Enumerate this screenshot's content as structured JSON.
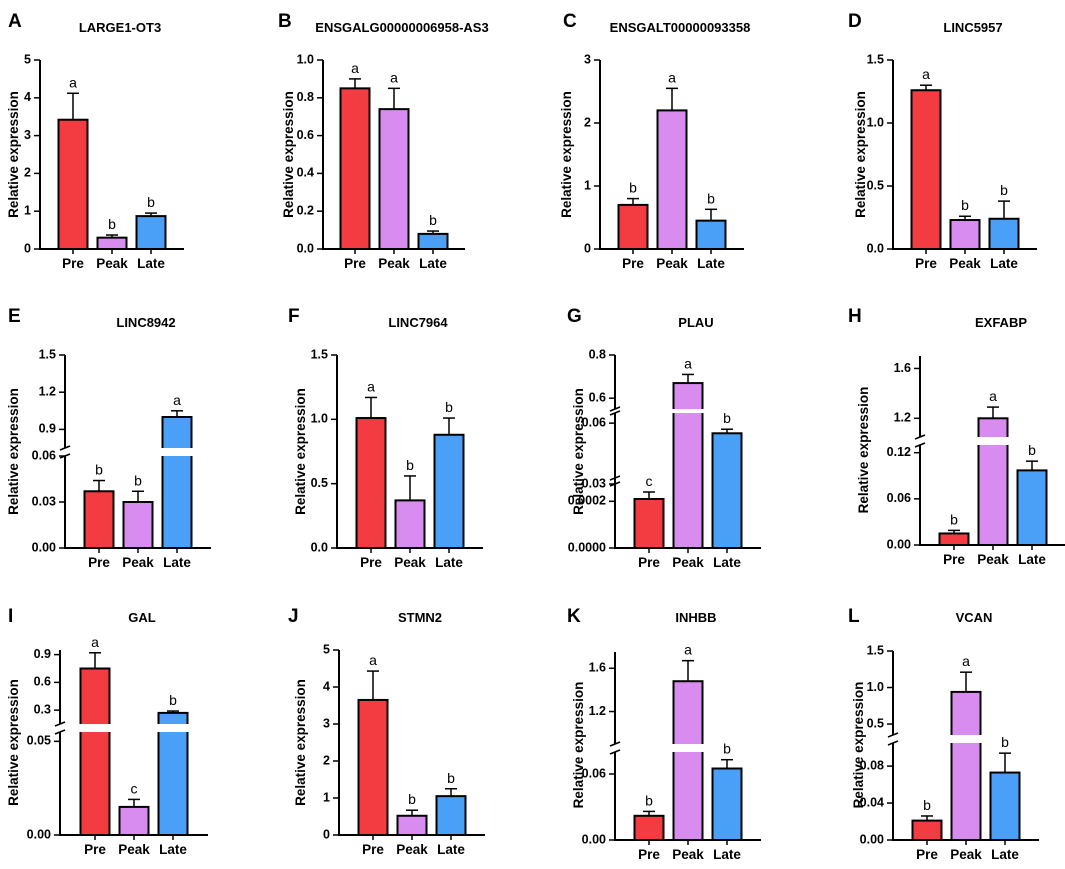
{
  "colors": {
    "pre": "#f23c41",
    "peak": "#d98cf0",
    "late": "#4aa0f6",
    "axis": "#000000"
  },
  "chart_data": [
    {
      "panel": "A",
      "title": "LARGE1-OT3",
      "type": "bar",
      "ylabel": "Relative expression",
      "categories": [
        "Pre",
        "Peak",
        "Late"
      ],
      "values": [
        3.42,
        0.3,
        0.87
      ],
      "errors": [
        0.7,
        0.07,
        0.08
      ],
      "letters": [
        "a",
        "b",
        "b"
      ],
      "ylim": [
        0,
        5
      ],
      "ticks": [
        {
          "v": 0,
          "t": "0"
        },
        {
          "v": 1,
          "t": "1"
        },
        {
          "v": 2,
          "t": "2"
        },
        {
          "v": 3,
          "t": "3"
        },
        {
          "v": 4,
          "t": "4"
        },
        {
          "v": 5,
          "t": "5"
        }
      ]
    },
    {
      "panel": "B",
      "title": "ENSGALG00000006958-AS3",
      "type": "bar",
      "ylabel": "Relative expression",
      "categories": [
        "Pre",
        "Peak",
        "Late"
      ],
      "values": [
        0.85,
        0.74,
        0.08
      ],
      "errors": [
        0.05,
        0.11,
        0.015
      ],
      "letters": [
        "a",
        "a",
        "b"
      ],
      "ylim": [
        0,
        1.0
      ],
      "ticks": [
        {
          "v": 0,
          "t": "0.0"
        },
        {
          "v": 0.2,
          "t": "0.2"
        },
        {
          "v": 0.4,
          "t": "0.4"
        },
        {
          "v": 0.6,
          "t": "0.6"
        },
        {
          "v": 0.8,
          "t": "0.8"
        },
        {
          "v": 1.0,
          "t": "1.0"
        }
      ]
    },
    {
      "panel": "C",
      "title": "ENSGALT00000093358",
      "type": "bar",
      "ylabel": "Relative expression",
      "categories": [
        "Pre",
        "Peak",
        "Late"
      ],
      "values": [
        0.7,
        2.2,
        0.45
      ],
      "errors": [
        0.1,
        0.35,
        0.18
      ],
      "letters": [
        "b",
        "a",
        "b"
      ],
      "ylim": [
        0,
        3
      ],
      "ticks": [
        {
          "v": 0,
          "t": "0"
        },
        {
          "v": 1,
          "t": "1"
        },
        {
          "v": 2,
          "t": "2"
        },
        {
          "v": 3,
          "t": "3"
        }
      ]
    },
    {
      "panel": "D",
      "title": "LINC5957",
      "type": "bar",
      "ylabel": "Relative expression",
      "categories": [
        "Pre",
        "Peak",
        "Late"
      ],
      "values": [
        1.26,
        0.23,
        0.24
      ],
      "errors": [
        0.04,
        0.03,
        0.14
      ],
      "letters": [
        "a",
        "b",
        "b"
      ],
      "ylim": [
        0,
        1.5
      ],
      "ticks": [
        {
          "v": 0,
          "t": "0.0"
        },
        {
          "v": 0.5,
          "t": "0.5"
        },
        {
          "v": 1.0,
          "t": "1.0"
        },
        {
          "v": 1.5,
          "t": "1.5"
        }
      ]
    },
    {
      "panel": "E",
      "title": "LINC8942",
      "type": "bar",
      "ylabel": "Relative expression",
      "categories": [
        "Pre",
        "Peak",
        "Late"
      ],
      "values": [
        0.037,
        0.03,
        1.0
      ],
      "errors": [
        0.007,
        0.007,
        0.05
      ],
      "letters": [
        "b",
        "b",
        "a"
      ],
      "axis_break": [
        0.06,
        0.75
      ],
      "ticks": [
        {
          "v": 0,
          "t": "0.00"
        },
        {
          "v": 0.03,
          "t": "0.03"
        },
        {
          "v": 0.06,
          "t": "0.06"
        },
        {
          "v": 0.9,
          "t": "0.9"
        },
        {
          "v": 1.2,
          "t": "1.2"
        },
        {
          "v": 1.5,
          "t": "1.5"
        }
      ]
    },
    {
      "panel": "F",
      "title": "LINC7964",
      "type": "bar",
      "ylabel": "Relative expression",
      "categories": [
        "Pre",
        "Peak",
        "Late"
      ],
      "values": [
        1.01,
        0.37,
        0.88
      ],
      "errors": [
        0.16,
        0.19,
        0.13
      ],
      "letters": [
        "a",
        "b",
        "b"
      ],
      "ylim": [
        0,
        1.5
      ],
      "ticks": [
        {
          "v": 0,
          "t": "0.0"
        },
        {
          "v": 0.5,
          "t": "0.5"
        },
        {
          "v": 1.0,
          "t": "1.0"
        },
        {
          "v": 1.5,
          "t": "1.5"
        }
      ]
    },
    {
      "panel": "G",
      "title": "PLAU",
      "type": "bar",
      "ylabel": "Relative expression",
      "categories": [
        "Pre",
        "Peak",
        "Late"
      ],
      "values": [
        0.00021,
        0.67,
        0.055
      ],
      "errors": [
        3e-05,
        0.04,
        0.002
      ],
      "letters": [
        "c",
        "a",
        "b"
      ],
      "axis_break": [
        0.0003,
        0.03,
        0.065,
        0.55
      ],
      "ticks": [
        {
          "v": 0,
          "t": "0.0000"
        },
        {
          "v": 0.0002,
          "t": "0.0002"
        },
        {
          "v": 0.03,
          "t": "0.03"
        },
        {
          "v": 0.06,
          "t": "0.06"
        },
        {
          "v": 0.6,
          "t": "0.6"
        },
        {
          "v": 0.8,
          "t": "0.8"
        }
      ]
    },
    {
      "panel": "H",
      "title": "EXFABP",
      "type": "bar",
      "ylabel": "Relative expression",
      "categories": [
        "Pre",
        "Peak",
        "Late"
      ],
      "values": [
        0.015,
        1.2,
        0.097
      ],
      "errors": [
        0.004,
        0.09,
        0.012
      ],
      "letters": [
        "b",
        "a",
        "b"
      ],
      "axis_break": [
        0.13,
        1.05
      ],
      "ticks": [
        {
          "v": 0,
          "t": "0.00"
        },
        {
          "v": 0.06,
          "t": "0.06"
        },
        {
          "v": 0.12,
          "t": "0.12"
        },
        {
          "v": 1.2,
          "t": "1.2"
        },
        {
          "v": 1.6,
          "t": "1.6"
        }
      ]
    },
    {
      "panel": "I",
      "title": "GAL",
      "type": "bar",
      "ylabel": "Relative expression",
      "categories": [
        "Pre",
        "Peak",
        "Late"
      ],
      "values": [
        0.75,
        0.015,
        0.27
      ],
      "errors": [
        0.17,
        0.004,
        0.02
      ],
      "letters": [
        "a",
        "c",
        "b"
      ],
      "axis_break": [
        0.055,
        0.15
      ],
      "ticks": [
        {
          "v": 0,
          "t": "0.00"
        },
        {
          "v": 0.05,
          "t": "0.05"
        },
        {
          "v": 0.3,
          "t": "0.3"
        },
        {
          "v": 0.6,
          "t": "0.6"
        },
        {
          "v": 0.9,
          "t": "0.9"
        }
      ]
    },
    {
      "panel": "J",
      "title": "STMN2",
      "type": "bar",
      "ylabel": "Relative expression",
      "categories": [
        "Pre",
        "Peak",
        "Late"
      ],
      "values": [
        3.65,
        0.52,
        1.05
      ],
      "errors": [
        0.78,
        0.15,
        0.2
      ],
      "letters": [
        "a",
        "b",
        "b"
      ],
      "ylim": [
        0,
        5
      ],
      "ticks": [
        {
          "v": 0,
          "t": "0"
        },
        {
          "v": 1,
          "t": "1"
        },
        {
          "v": 2,
          "t": "2"
        },
        {
          "v": 3,
          "t": "3"
        },
        {
          "v": 4,
          "t": "4"
        },
        {
          "v": 5,
          "t": "5"
        }
      ]
    },
    {
      "panel": "K",
      "title": "INHBB",
      "type": "bar",
      "ylabel": "Relative expression",
      "categories": [
        "Pre",
        "Peak",
        "Late"
      ],
      "values": [
        0.022,
        1.48,
        0.065
      ],
      "errors": [
        0.004,
        0.19,
        0.008
      ],
      "letters": [
        "b",
        "a",
        "b"
      ],
      "axis_break": [
        0.08,
        0.9
      ],
      "ticks": [
        {
          "v": 0,
          "t": "0.00"
        },
        {
          "v": 0.06,
          "t": "0.06"
        },
        {
          "v": 1.2,
          "t": "1.2"
        },
        {
          "v": 1.6,
          "t": "1.6"
        }
      ]
    },
    {
      "panel": "L",
      "title": "VCAN",
      "type": "bar",
      "ylabel": "Relative expression",
      "categories": [
        "Pre",
        "Peak",
        "Late"
      ],
      "values": [
        0.021,
        0.94,
        0.073
      ],
      "errors": [
        0.005,
        0.27,
        0.021
      ],
      "letters": [
        "b",
        "a",
        "b"
      ],
      "axis_break": [
        0.105,
        0.35
      ],
      "ticks": [
        {
          "v": 0,
          "t": "0.00"
        },
        {
          "v": 0.04,
          "t": "0.04"
        },
        {
          "v": 0.08,
          "t": "0.08"
        },
        {
          "v": 0.5,
          "t": "0.5"
        },
        {
          "v": 1.0,
          "t": "1.0"
        },
        {
          "v": 1.5,
          "t": "1.5"
        }
      ]
    }
  ]
}
